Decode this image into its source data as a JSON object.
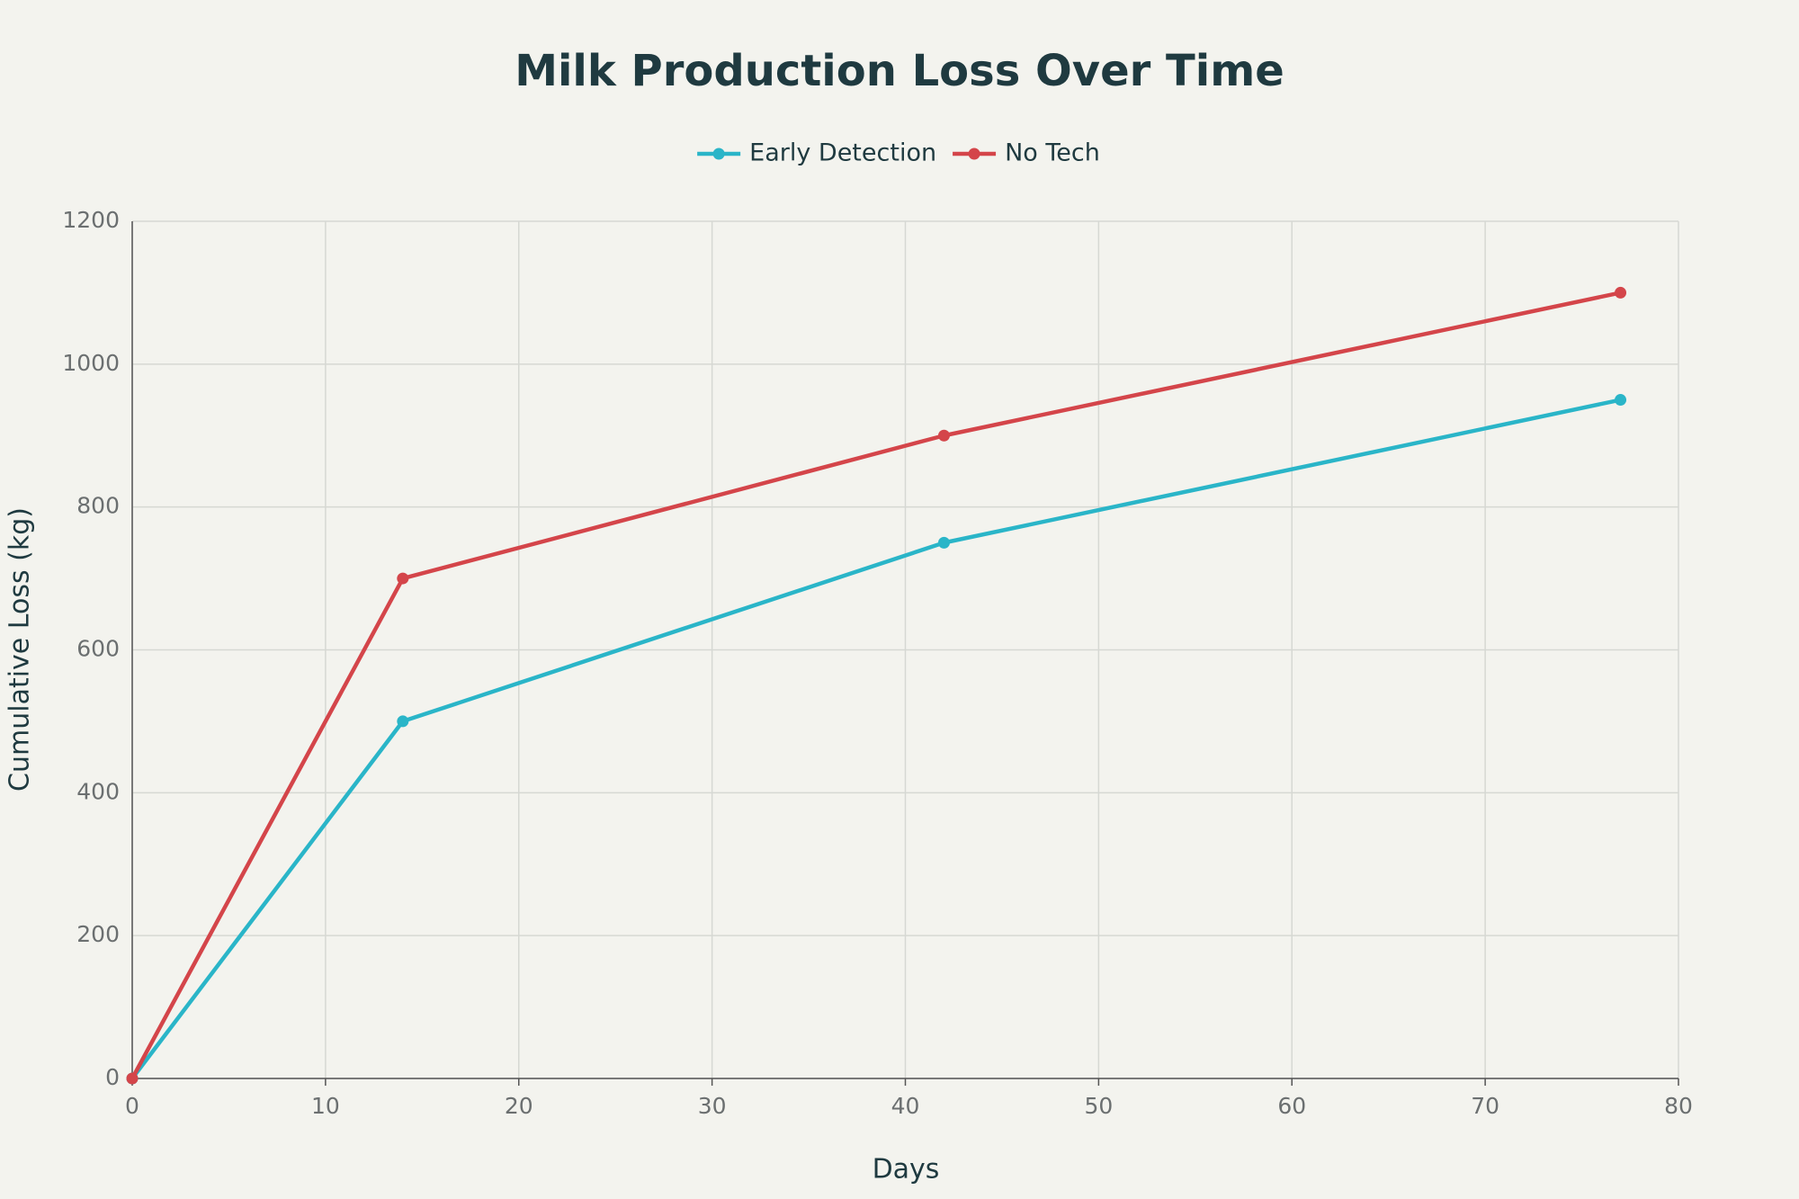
{
  "chart_data": {
    "type": "line",
    "title": "Milk Production Loss Over Time",
    "x_label": "Days",
    "y_label": "Cumulative Loss (kg)",
    "x": [
      0,
      14,
      42,
      77
    ],
    "series": [
      {
        "name": "Early Detection",
        "color": "#2ab5c8",
        "values": [
          0,
          500,
          750,
          950
        ]
      },
      {
        "name": "No Tech",
        "color": "#d4454a",
        "values": [
          0,
          700,
          900,
          1100
        ]
      }
    ],
    "xlim": [
      0,
      80
    ],
    "xticks": [
      0,
      10,
      20,
      30,
      40,
      50,
      60,
      70,
      80
    ],
    "ylim": [
      0,
      1200
    ],
    "yticks": [
      0,
      200,
      400,
      600,
      800,
      1000,
      1200
    ],
    "grid": true
  }
}
